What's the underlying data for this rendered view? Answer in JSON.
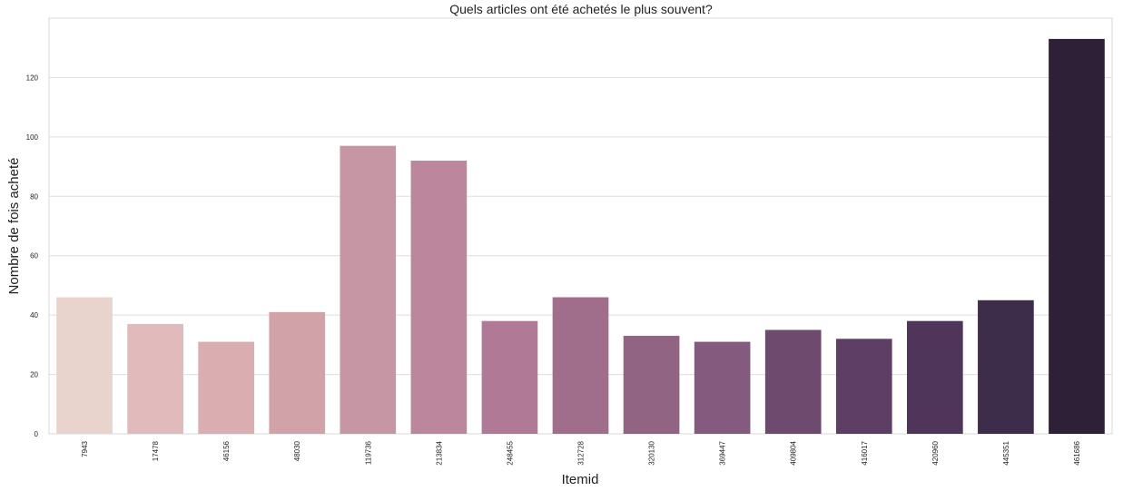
{
  "chart_data": {
    "type": "bar",
    "title": "Quels articles ont été achetés le plus souvent?",
    "xlabel": "Itemid",
    "ylabel": "Nombre de fois acheté",
    "categories": [
      "7943",
      "17478",
      "46156",
      "48030",
      "119736",
      "213834",
      "248455",
      "312728",
      "320130",
      "369447",
      "409804",
      "416017",
      "420960",
      "445351",
      "461686"
    ],
    "values": [
      46,
      37,
      31,
      41,
      97,
      92,
      38,
      46,
      33,
      31,
      35,
      32,
      38,
      45,
      133
    ],
    "ylim": [
      0,
      140
    ],
    "yticks": [
      0,
      20,
      40,
      60,
      80,
      100,
      120
    ],
    "grid": true,
    "legend": "none",
    "colors": [
      "#e8d3cd",
      "#e1bbbb",
      "#daaeb0",
      "#d2a2a9",
      "#c796a4",
      "#bc879c",
      "#b07a96",
      "#a06e8b",
      "#906482",
      "#845b7e",
      "#6f4a6f",
      "#5e3e64",
      "#4f3559",
      "#3e2c4b",
      "#2e2036"
    ]
  }
}
